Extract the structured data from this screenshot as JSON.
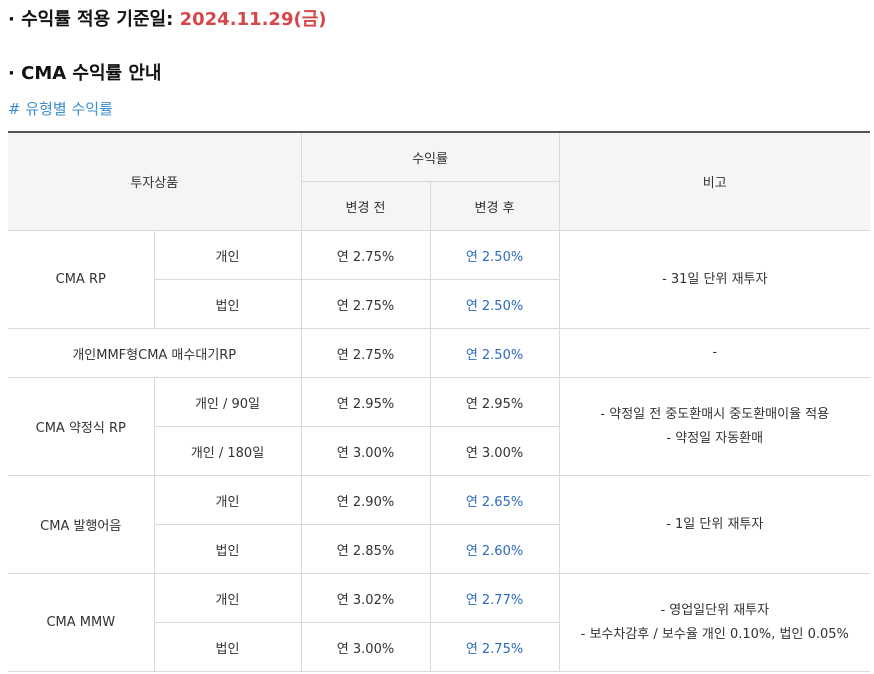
{
  "header": {
    "base_label": "· 수익률 적용 기준일: ",
    "base_date": "2024.11.29(금)",
    "section_title": "· CMA 수익률 안내",
    "subtitle": "# 유형별 수익률"
  },
  "table": {
    "headers": {
      "product": "투자상품",
      "rate": "수익률",
      "before": "변경 전",
      "after": "변경 후",
      "note": "비고"
    },
    "rows": [
      {
        "product": "CMA RP",
        "sub": "개인",
        "before": "연 2.75%",
        "after": "연 2.50%",
        "note": "- 31일 단위 재투자"
      },
      {
        "sub": "법인",
        "before": "연 2.75%",
        "after": "연 2.50%"
      },
      {
        "product": "개인MMF형CMA 매수대기RP",
        "before": "연 2.75%",
        "after": "연 2.50%",
        "note": "-"
      },
      {
        "product": "CMA 약정식 RP",
        "sub": "개인 / 90일",
        "before": "연 2.95%",
        "after": "연 2.95%",
        "note1": "- 약정일 전 중도환매시 중도환매이율 적용",
        "note2": "- 약정일 자동환매"
      },
      {
        "sub": "개인 / 180일",
        "before": "연 3.00%",
        "after": "연 3.00%"
      },
      {
        "product": "CMA 발행어음",
        "sub": "개인",
        "before": "연 2.90%",
        "after": "연 2.65%",
        "note": "- 1일 단위 재투자"
      },
      {
        "sub": "법인",
        "before": "연 2.85%",
        "after": "연 2.60%"
      },
      {
        "product": "CMA MMW",
        "sub": "개인",
        "before": "연 3.02%",
        "after": "연 2.77%",
        "note1": "- 영업일단위 재투자",
        "note2": "- 보수차감후 / 보수율 개인 0.10%, 법인 0.05%"
      },
      {
        "sub": "법인",
        "before": "연 3.00%",
        "after": "연 2.75%"
      }
    ]
  },
  "colors": {
    "date_accent": "#d6474b",
    "subtitle": "#3b8ed1",
    "after_rate": "#2c6bbf",
    "header_bg": "#f5f5f5"
  }
}
